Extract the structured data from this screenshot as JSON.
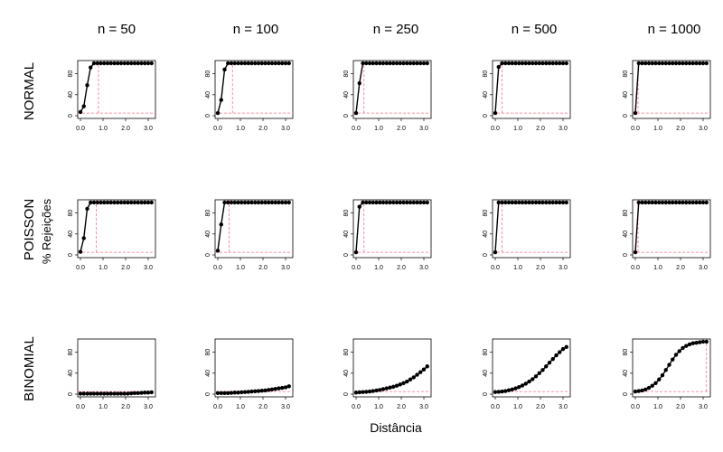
{
  "chart_data": {
    "type": "line",
    "xlabel": "Distância",
    "ylabel": "% Rejeições",
    "column_titles": [
      "n = 50",
      "n = 100",
      "n = 250",
      "n = 500",
      "n = 1000"
    ],
    "row_labels": [
      "NORMAL",
      "POISSON",
      "BINOMIAL"
    ],
    "x_ticks": [
      "0.0",
      "1.0",
      "2.0",
      "3.0"
    ],
    "y_ticks": [
      "0",
      "40",
      "80"
    ],
    "xlim": [
      0,
      3.2
    ],
    "ylim": [
      0,
      100
    ],
    "x": [
      0.0,
      0.15,
      0.3,
      0.45,
      0.6,
      0.75,
      0.9,
      1.05,
      1.2,
      1.35,
      1.5,
      1.65,
      1.8,
      1.95,
      2.1,
      2.25,
      2.4,
      2.55,
      2.7,
      2.85,
      3.0,
      3.15
    ],
    "reference_y": 5,
    "series_color": "#000000",
    "reference_color": "#ff6b8a",
    "panels": [
      {
        "row": 0,
        "col": 0,
        "threshold_x": 0.8,
        "values": [
          7,
          18,
          58,
          92,
          100,
          100,
          100,
          100,
          100,
          100,
          100,
          100,
          100,
          100,
          100,
          100,
          100,
          100,
          100,
          100,
          100,
          100
        ]
      },
      {
        "row": 0,
        "col": 1,
        "threshold_x": 0.65,
        "values": [
          5,
          30,
          88,
          100,
          100,
          100,
          100,
          100,
          100,
          100,
          100,
          100,
          100,
          100,
          100,
          100,
          100,
          100,
          100,
          100,
          100,
          100
        ]
      },
      {
        "row": 0,
        "col": 2,
        "threshold_x": 0.35,
        "values": [
          5,
          62,
          100,
          100,
          100,
          100,
          100,
          100,
          100,
          100,
          100,
          100,
          100,
          100,
          100,
          100,
          100,
          100,
          100,
          100,
          100,
          100
        ]
      },
      {
        "row": 0,
        "col": 3,
        "threshold_x": 0.3,
        "values": [
          5,
          93,
          100,
          100,
          100,
          100,
          100,
          100,
          100,
          100,
          100,
          100,
          100,
          100,
          100,
          100,
          100,
          100,
          100,
          100,
          100,
          100
        ]
      },
      {
        "row": 0,
        "col": 4,
        "threshold_x": 0.12,
        "values": [
          5,
          100,
          100,
          100,
          100,
          100,
          100,
          100,
          100,
          100,
          100,
          100,
          100,
          100,
          100,
          100,
          100,
          100,
          100,
          100,
          100,
          100
        ]
      },
      {
        "row": 1,
        "col": 0,
        "threshold_x": 0.7,
        "values": [
          6,
          32,
          88,
          100,
          100,
          100,
          100,
          100,
          100,
          100,
          100,
          100,
          100,
          100,
          100,
          100,
          100,
          100,
          100,
          100,
          100,
          100
        ]
      },
      {
        "row": 1,
        "col": 1,
        "threshold_x": 0.5,
        "values": [
          8,
          58,
          100,
          100,
          100,
          100,
          100,
          100,
          100,
          100,
          100,
          100,
          100,
          100,
          100,
          100,
          100,
          100,
          100,
          100,
          100,
          100
        ]
      },
      {
        "row": 1,
        "col": 2,
        "threshold_x": 0.35,
        "values": [
          5,
          92,
          100,
          100,
          100,
          100,
          100,
          100,
          100,
          100,
          100,
          100,
          100,
          100,
          100,
          100,
          100,
          100,
          100,
          100,
          100,
          100
        ]
      },
      {
        "row": 1,
        "col": 3,
        "threshold_x": 0.3,
        "values": [
          5,
          100,
          100,
          100,
          100,
          100,
          100,
          100,
          100,
          100,
          100,
          100,
          100,
          100,
          100,
          100,
          100,
          100,
          100,
          100,
          100,
          100
        ]
      },
      {
        "row": 1,
        "col": 4,
        "threshold_x": 0.12,
        "values": [
          5,
          100,
          100,
          100,
          100,
          100,
          100,
          100,
          100,
          100,
          100,
          100,
          100,
          100,
          100,
          100,
          100,
          100,
          100,
          100,
          100,
          100
        ]
      },
      {
        "row": 2,
        "col": 0,
        "threshold_x": null,
        "values": [
          1,
          1,
          1,
          1,
          1,
          1,
          1,
          1,
          1,
          1,
          1,
          1,
          1,
          1,
          1,
          1.5,
          2,
          2,
          2.5,
          3,
          3,
          3.5
        ]
      },
      {
        "row": 2,
        "col": 1,
        "threshold_x": null,
        "values": [
          2,
          2,
          2,
          2,
          2.5,
          3,
          3,
          3.5,
          4,
          4.5,
          5,
          5.5,
          6,
          6.5,
          7,
          8,
          9,
          10,
          11,
          12,
          13,
          15
        ]
      },
      {
        "row": 2,
        "col": 2,
        "threshold_x": null,
        "values": [
          3,
          3.5,
          4,
          4.5,
          5,
          6,
          7,
          8,
          9.5,
          11,
          12.5,
          14,
          16,
          18.5,
          21,
          24,
          28,
          32,
          37,
          42,
          47,
          53
        ]
      },
      {
        "row": 2,
        "col": 3,
        "threshold_x": null,
        "values": [
          4,
          4.5,
          5,
          6,
          7.5,
          9,
          11,
          13.5,
          16.5,
          20,
          24,
          28.5,
          34,
          40,
          46,
          53,
          60,
          67,
          74,
          80,
          86,
          90
        ]
      },
      {
        "row": 2,
        "col": 4,
        "threshold_x": 3.15,
        "values": [
          5,
          6,
          7,
          9,
          12,
          16,
          21,
          28,
          36,
          46,
          56,
          66,
          75,
          82,
          88,
          92,
          95,
          97,
          98,
          99,
          100,
          100
        ]
      }
    ]
  }
}
